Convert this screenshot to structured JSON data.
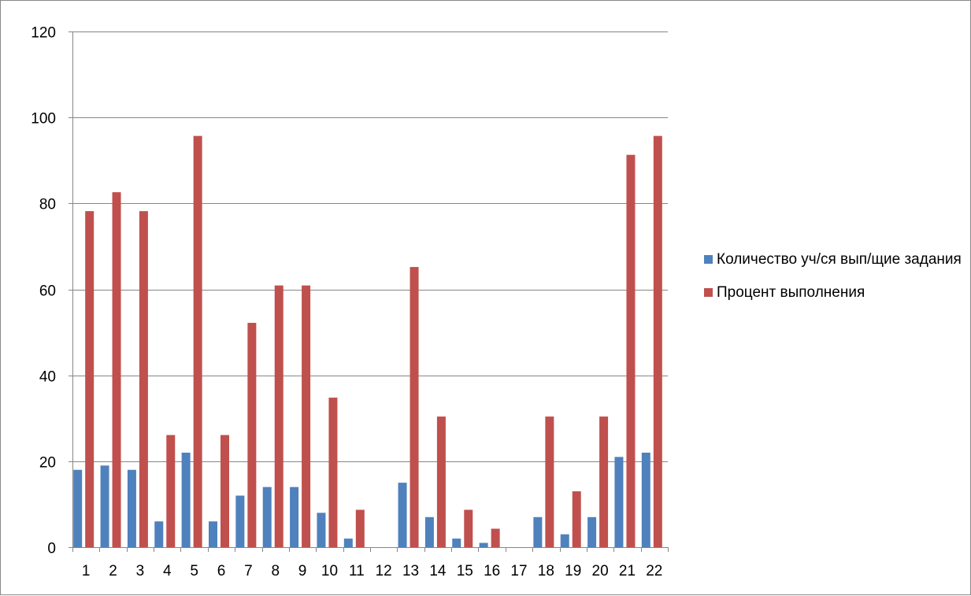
{
  "chart_data": {
    "type": "bar",
    "categories": [
      "1",
      "2",
      "3",
      "4",
      "5",
      "6",
      "7",
      "8",
      "9",
      "10",
      "11",
      "12",
      "13",
      "14",
      "15",
      "16",
      "17",
      "18",
      "19",
      "20",
      "21",
      "22"
    ],
    "series": [
      {
        "name": "Количество уч/ся вып/щие задания",
        "color": "#4f81bd",
        "values": [
          18,
          19,
          18,
          6,
          22,
          6,
          12,
          14,
          14,
          8,
          2,
          0,
          15,
          7,
          2,
          1,
          0,
          7,
          3,
          7,
          21,
          22
        ]
      },
      {
        "name": "Процент выполнения",
        "color": "#c0504d",
        "values": [
          78.2,
          82.6,
          78.2,
          26.1,
          95.7,
          26.1,
          52.2,
          60.9,
          60.9,
          34.8,
          8.7,
          0,
          65.2,
          30.4,
          8.7,
          4.3,
          0,
          30.4,
          13,
          30.4,
          91.3,
          95.7
        ]
      }
    ],
    "y_ticks": [
      0,
      20,
      40,
      60,
      80,
      100,
      120
    ],
    "ylim": [
      0,
      120
    ],
    "grid": true,
    "legend_position": "right",
    "title": "",
    "xlabel": "",
    "ylabel": ""
  }
}
